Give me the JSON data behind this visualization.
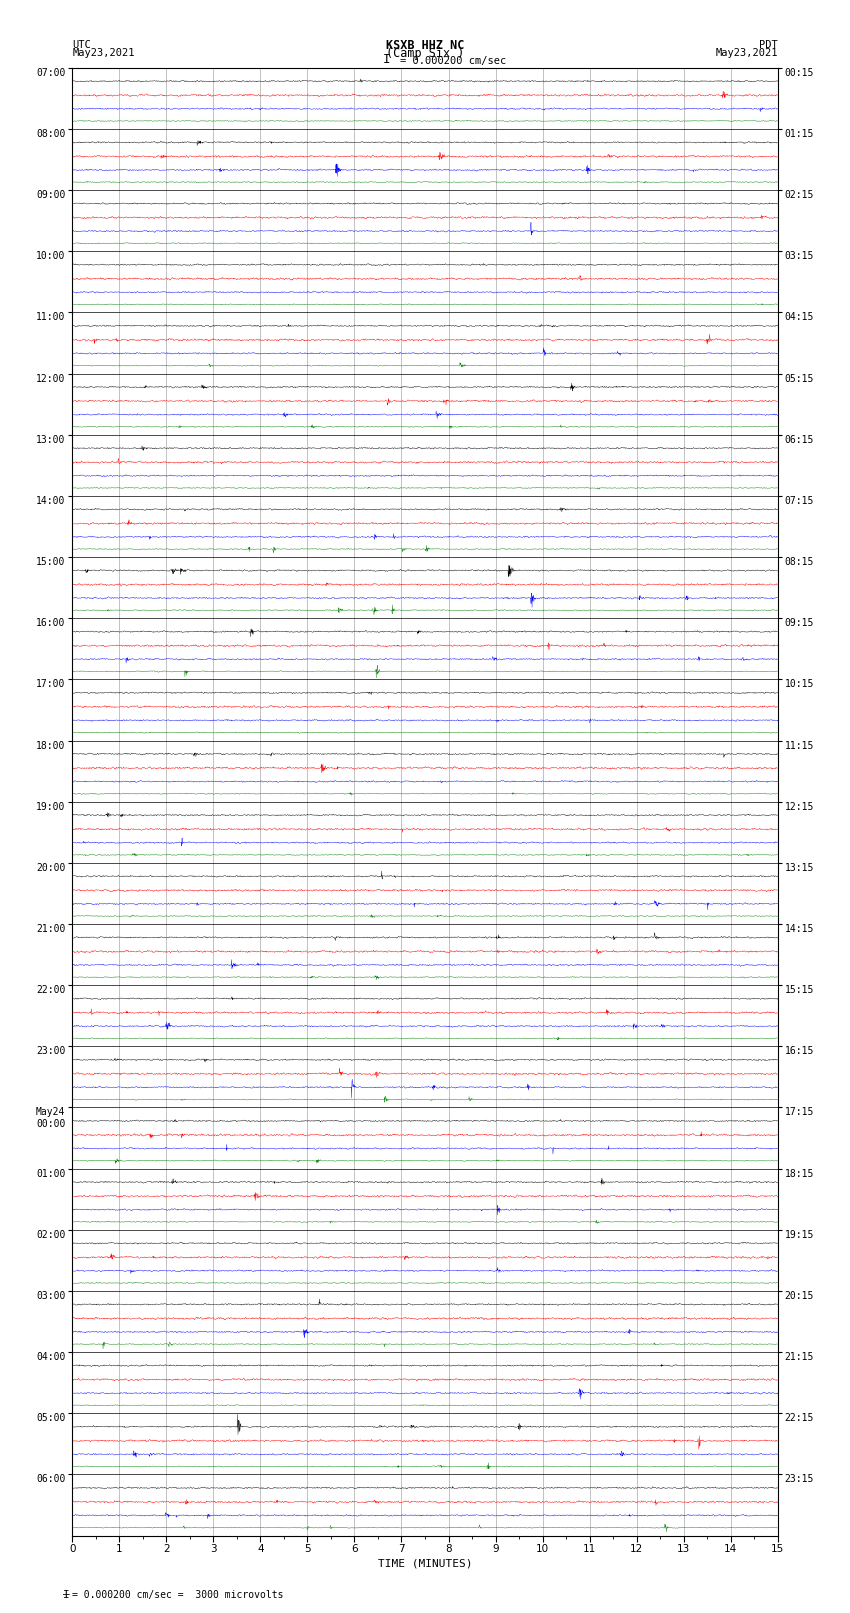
{
  "title_line1": "KSXB HHZ NC",
  "title_line2": "(Camp Six )",
  "title_scale": "I = 0.000200 cm/sec",
  "left_label_top": "UTC",
  "left_label_date": "May23,2021",
  "right_label_top": "PDT",
  "right_label_date": "May23,2021",
  "bottom_label": "TIME (MINUTES)",
  "bottom_note": "= 0.000200 cm/sec =  3000 microvolts",
  "trace_colors": [
    "black",
    "red",
    "blue",
    "green"
  ],
  "bg_color": "white",
  "grid_color": "#aaaaaa",
  "xlim": [
    0,
    15
  ],
  "xticks": [
    0,
    1,
    2,
    3,
    4,
    5,
    6,
    7,
    8,
    9,
    10,
    11,
    12,
    13,
    14,
    15
  ],
  "utc_times": [
    "07:00",
    "08:00",
    "09:00",
    "10:00",
    "11:00",
    "12:00",
    "13:00",
    "14:00",
    "15:00",
    "16:00",
    "17:00",
    "18:00",
    "19:00",
    "20:00",
    "21:00",
    "22:00",
    "23:00",
    "May24\n00:00",
    "01:00",
    "02:00",
    "03:00",
    "04:00",
    "05:00",
    "06:00"
  ],
  "pdt_times": [
    "00:15",
    "01:15",
    "02:15",
    "03:15",
    "04:15",
    "05:15",
    "06:15",
    "07:15",
    "08:15",
    "09:15",
    "10:15",
    "11:15",
    "12:15",
    "13:15",
    "14:15",
    "15:15",
    "16:15",
    "17:15",
    "18:15",
    "19:15",
    "20:15",
    "21:15",
    "22:15",
    "23:15"
  ],
  "n_rows": 24,
  "traces_per_row": 4,
  "n_points": 2700,
  "noise_scales": [
    0.06,
    0.08,
    0.06,
    0.04
  ],
  "amp_scale": 0.09,
  "trace_offsets": [
    0.78,
    0.55,
    0.33,
    0.13
  ],
  "seed": 42
}
